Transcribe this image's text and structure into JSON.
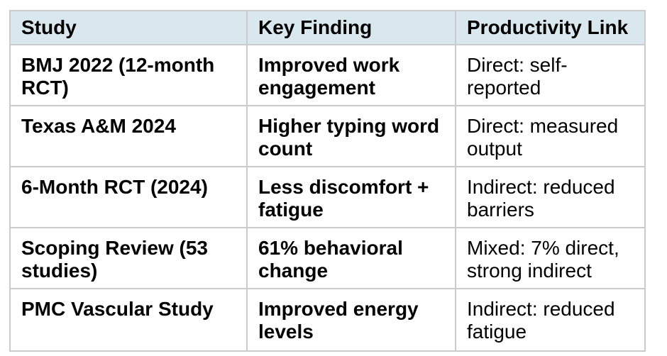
{
  "table": {
    "columns": [
      "Study",
      "Key Finding",
      "Productivity Link"
    ],
    "rows": [
      {
        "study": "BMJ 2022 (12-month RCT)",
        "key_finding": "Improved work engagement",
        "productivity_link": "Direct: self-reported"
      },
      {
        "study": "Texas A&M 2024",
        "key_finding": "Higher typing word count",
        "productivity_link": "Direct: measured output"
      },
      {
        "study": "6-Month RCT (2024)",
        "key_finding": "Less discomfort + fatigue",
        "productivity_link": "Indirect: reduced barriers"
      },
      {
        "study": "Scoping Review (53 studies)",
        "key_finding": "61% behavioral change",
        "productivity_link": "Mixed: 7% direct, strong indirect"
      },
      {
        "study": "PMC Vascular Study",
        "key_finding": "Improved energy levels",
        "productivity_link": "Indirect: reduced fatigue"
      }
    ],
    "colors": {
      "header_bg": "#d9e7ee",
      "border": "#cbcbcb",
      "text": "#000000",
      "page_bg": "#ffffff"
    }
  }
}
